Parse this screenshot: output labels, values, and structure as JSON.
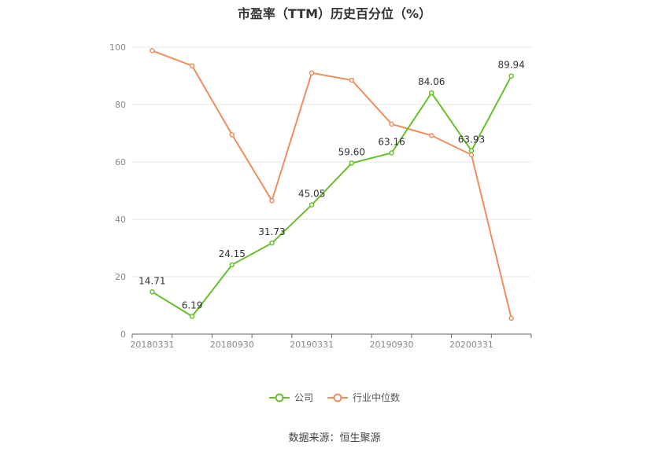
{
  "title": "市盈率（TTM）历史百分位（%）",
  "source": "数据来源：恒生聚源",
  "colors": {
    "company": "#66c02a",
    "industry": "#f08c5e"
  },
  "chart_data": {
    "type": "line",
    "x": [
      "20180331",
      "20180630",
      "20180930",
      "20181231",
      "20190331",
      "20190630",
      "20190930",
      "20191231",
      "20200331",
      "20200630"
    ],
    "x_tick_labels": [
      "20180331",
      "20180930",
      "20190331",
      "20190930",
      "20200331"
    ],
    "ylim": [
      0,
      100
    ],
    "y_ticks": [
      0,
      20,
      40,
      60,
      80,
      100
    ],
    "grid": true,
    "legend_position": "bottom-center",
    "series": [
      {
        "name": "公司",
        "values": [
          14.71,
          6.19,
          24.15,
          31.73,
          45.05,
          59.6,
          63.16,
          84.06,
          63.93,
          89.94
        ],
        "labels": [
          "14.71",
          "6.19",
          "24.15",
          "31.73",
          "45.05",
          "59.60",
          "63.16",
          "84.06",
          "63.93",
          "89.94"
        ]
      },
      {
        "name": "行业中位数",
        "values": [
          98.8,
          93.5,
          69.5,
          46.5,
          91.0,
          88.5,
          73.2,
          69.2,
          62.5,
          5.5
        ]
      }
    ]
  }
}
